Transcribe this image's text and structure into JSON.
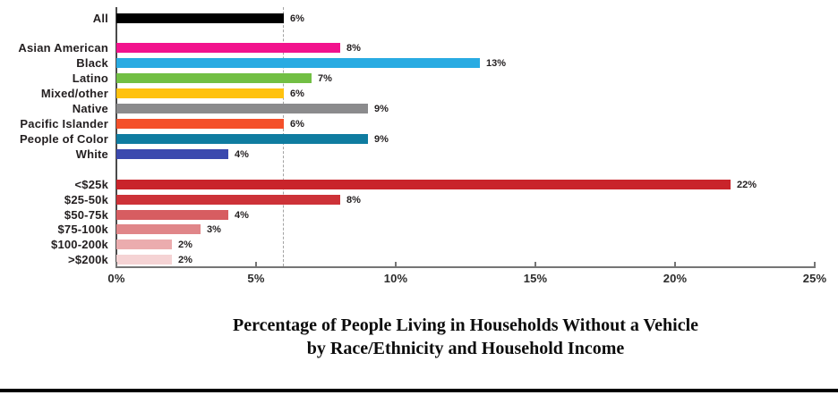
{
  "chart_data": {
    "type": "bar",
    "orientation": "horizontal",
    "title_line1": "Percentage of People Living in Households Without a Vehicle",
    "title_line2": "by Race/Ethnicity and Household Income",
    "xlabel": "",
    "ylabel": "",
    "xlim": [
      0,
      25
    ],
    "x_ticks": [
      "0%",
      "5%",
      "10%",
      "15%",
      "20%",
      "25%"
    ],
    "grid": false,
    "legend": "none",
    "reference_line": {
      "value": 6,
      "style": "dashed",
      "color": "#a3a3a3"
    },
    "groups": [
      {
        "name": "all",
        "rows": [
          {
            "label": "All",
            "value": 6,
            "display": "6%",
            "color": "#000000"
          }
        ]
      },
      {
        "name": "race-ethnicity",
        "rows": [
          {
            "label": "Asian American",
            "value": 8,
            "display": "8%",
            "color": "#f2128d"
          },
          {
            "label": "Black",
            "value": 13,
            "display": "13%",
            "color": "#29abe2"
          },
          {
            "label": "Latino",
            "value": 7,
            "display": "7%",
            "color": "#72bf44"
          },
          {
            "label": "Mixed/other",
            "value": 6,
            "display": "6%",
            "color": "#ffc20e"
          },
          {
            "label": "Native",
            "value": 9,
            "display": "9%",
            "color": "#8b8b8d"
          },
          {
            "label": "Pacific Islander",
            "value": 6,
            "display": "6%",
            "color": "#f4502a"
          },
          {
            "label": "People of Color",
            "value": 9,
            "display": "9%",
            "color": "#0f7ca0"
          },
          {
            "label": "White",
            "value": 4,
            "display": "4%",
            "color": "#3b49ae"
          }
        ]
      },
      {
        "name": "household-income",
        "rows": [
          {
            "label": "<$25k",
            "value": 22,
            "display": "22%",
            "color": "#c9242b"
          },
          {
            "label": "$25-50k",
            "value": 8,
            "display": "8%",
            "color": "#cd3238"
          },
          {
            "label": "$50-75k",
            "value": 4,
            "display": "4%",
            "color": "#d75d61"
          },
          {
            "label": "$75-100k",
            "value": 3,
            "display": "3%",
            "color": "#e08689"
          },
          {
            "label": "$100-200k",
            "value": 2,
            "display": "2%",
            "color": "#ebacae"
          },
          {
            "label": ">$200k",
            "value": 2,
            "display": "2%",
            "color": "#f5d3d4"
          }
        ]
      }
    ]
  }
}
